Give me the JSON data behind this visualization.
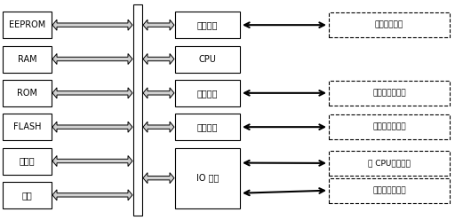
{
  "fig_width": 5.12,
  "fig_height": 2.48,
  "dpi": 100,
  "bg_color": "#ffffff",
  "left_boxes": [
    "EEPROM",
    "RAM",
    "ROM",
    "FLASH",
    "显示屏",
    "键盘"
  ],
  "right_center_boxes": [
    "面板信号",
    "CPU",
    "串行接口",
    "网络接口",
    "IO 接口"
  ],
  "right_dashed_boxes": [
    "显示装置状态",
    "与测控单元通信",
    "连接站内以太网",
    "至 CPU、控制等",
    "信号、告警输出"
  ],
  "font_cjk": "SimSun",
  "font_latin": "DejaVu Sans"
}
